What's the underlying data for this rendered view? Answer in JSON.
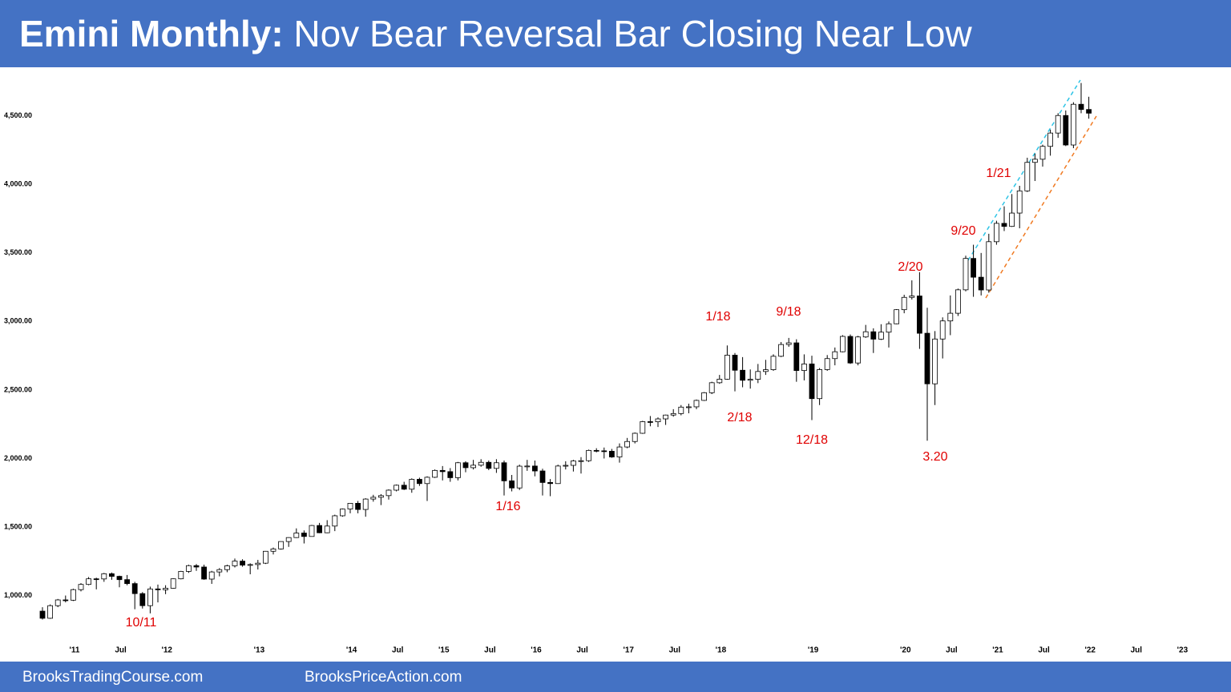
{
  "chart_data": {
    "type": "candlestick",
    "title_lead": "Emini Monthly:",
    "title": "Nov Bear Reversal Bar Closing Near Low",
    "footer": [
      "BrooksTradingCourse.com",
      "BrooksPriceAction.com"
    ],
    "x": [
      "2010-08",
      "2010-09",
      "2010-10",
      "2010-11",
      "2010-12",
      "2011-01",
      "2011-02",
      "2011-03",
      "2011-04",
      "2011-05",
      "2011-06",
      "2011-07",
      "2011-08",
      "2011-09",
      "2011-10",
      "2011-11",
      "2011-12",
      "2012-01",
      "2012-02",
      "2012-03",
      "2012-04",
      "2012-05",
      "2012-06",
      "2012-07",
      "2012-08",
      "2012-09",
      "2012-10",
      "2012-11",
      "2012-12",
      "2013-01",
      "2013-02",
      "2013-03",
      "2013-04",
      "2013-05",
      "2013-06",
      "2013-07",
      "2013-08",
      "2013-09",
      "2013-10",
      "2013-11",
      "2013-12",
      "2014-01",
      "2014-02",
      "2014-03",
      "2014-04",
      "2014-05",
      "2014-06",
      "2014-07",
      "2014-08",
      "2014-09",
      "2014-10",
      "2014-11",
      "2014-12",
      "2015-01",
      "2015-02",
      "2015-03",
      "2015-04",
      "2015-05",
      "2015-06",
      "2015-07",
      "2015-08",
      "2015-09",
      "2015-10",
      "2015-11",
      "2015-12",
      "2016-01",
      "2016-02",
      "2016-03",
      "2016-04",
      "2016-05",
      "2016-06",
      "2016-07",
      "2016-08",
      "2016-09",
      "2016-10",
      "2016-11",
      "2016-12",
      "2017-01",
      "2017-02",
      "2017-03",
      "2017-04",
      "2017-05",
      "2017-06",
      "2017-07",
      "2017-08",
      "2017-09",
      "2017-10",
      "2017-11",
      "2017-12",
      "2018-01",
      "2018-02",
      "2018-03",
      "2018-04",
      "2018-05",
      "2018-06",
      "2018-07",
      "2018-08",
      "2018-09",
      "2018-10",
      "2018-11",
      "2018-12",
      "2019-01",
      "2019-02",
      "2019-03",
      "2019-04",
      "2019-05",
      "2019-06",
      "2019-07",
      "2019-08",
      "2019-09",
      "2019-10",
      "2019-11",
      "2019-12",
      "2020-01",
      "2020-02",
      "2020-03",
      "2020-04",
      "2020-05",
      "2020-06",
      "2020-07",
      "2020-08",
      "2020-09",
      "2020-10",
      "2020-11",
      "2020-12",
      "2021-01",
      "2021-02",
      "2021-03",
      "2021-04",
      "2021-05",
      "2021-06",
      "2021-07",
      "2021-08",
      "2021-09",
      "2021-10",
      "2021-11",
      "2021-12"
    ],
    "open": [
      886,
      834,
      926,
      968,
      966,
      1043,
      1081,
      1122,
      1121,
      1159,
      1140,
      1116,
      1087,
      1014,
      926,
      1048,
      1042,
      1053,
      1122,
      1176,
      1218,
      1208,
      1120,
      1172,
      1189,
      1217,
      1251,
      1222,
      1226,
      1236,
      1323,
      1340,
      1394,
      1423,
      1456,
      1431,
      1511,
      1458,
      1507,
      1582,
      1631,
      1673,
      1628,
      1704,
      1717,
      1729,
      1769,
      1805,
      1776,
      1848,
      1817,
      1863,
      1913,
      1904,
      1860,
      1969,
      1933,
      1951,
      1972,
      1928,
      1969,
      1837,
      1785,
      1944,
      1945,
      1909,
      1825,
      1817,
      1945,
      1950,
      1982,
      1984,
      2059,
      2056,
      2053,
      2011,
      2084,
      2124,
      2184,
      2269,
      2268,
      2289,
      2317,
      2328,
      2375,
      2377,
      2424,
      2480,
      2553,
      2579,
      2754,
      2644,
      2571,
      2578,
      2635,
      2648,
      2746,
      2832,
      2844,
      2642,
      2690,
      2437,
      2649,
      2729,
      2779,
      2891,
      2697,
      2887,
      2925,
      2871,
      2922,
      2983,
      3086,
      3176,
      3186,
      2914,
      2545,
      2872,
      3004,
      3060,
      3231,
      3460,
      3323,
      3230,
      3582,
      3716,
      3694,
      3791,
      3953,
      4161,
      4184,
      4278,
      4375,
      4503,
      4288,
      4585,
      4547
    ],
    "high": [
      915,
      935,
      975,
      1000,
      1050,
      1090,
      1135,
      1130,
      1165,
      1168,
      1145,
      1150,
      1100,
      1025,
      1065,
      1080,
      1075,
      1125,
      1180,
      1225,
      1230,
      1225,
      1180,
      1200,
      1225,
      1270,
      1265,
      1235,
      1260,
      1325,
      1350,
      1395,
      1425,
      1490,
      1475,
      1515,
      1530,
      1550,
      1590,
      1635,
      1675,
      1690,
      1710,
      1735,
      1740,
      1775,
      1810,
      1830,
      1855,
      1860,
      1870,
      1920,
      1945,
      1930,
      1975,
      1980,
      1990,
      1995,
      1985,
      1995,
      1985,
      1880,
      1955,
      1990,
      1985,
      1925,
      1850,
      1955,
      1980,
      1990,
      2010,
      2065,
      2075,
      2080,
      2070,
      2110,
      2150,
      2190,
      2275,
      2310,
      2300,
      2320,
      2360,
      2390,
      2400,
      2430,
      2485,
      2560,
      2610,
      2825,
      2770,
      2740,
      2650,
      2690,
      2720,
      2760,
      2850,
      2880,
      2870,
      2760,
      2750,
      2660,
      2755,
      2810,
      2900,
      2905,
      2895,
      2975,
      2950,
      2980,
      3000,
      3090,
      3195,
      3300,
      3360,
      3100,
      2930,
      3030,
      3190,
      3240,
      3480,
      3560,
      3500,
      3640,
      3735,
      3840,
      3930,
      3990,
      4195,
      4225,
      4290,
      4400,
      4520,
      4540,
      4600,
      4740,
      4640
    ],
    "low": [
      825,
      830,
      915,
      950,
      960,
      1030,
      1075,
      1045,
      1100,
      1115,
      1060,
      1075,
      900,
      905,
      870,
      950,
      1010,
      1050,
      1118,
      1165,
      1180,
      1115,
      1085,
      1140,
      1170,
      1205,
      1210,
      1155,
      1190,
      1230,
      1300,
      1335,
      1355,
      1420,
      1380,
      1430,
      1455,
      1455,
      1470,
      1575,
      1600,
      1600,
      1575,
      1685,
      1660,
      1700,
      1760,
      1770,
      1750,
      1800,
      1690,
      1858,
      1840,
      1830,
      1840,
      1900,
      1920,
      1940,
      1915,
      1895,
      1730,
      1760,
      1770,
      1910,
      1870,
      1730,
      1725,
      1815,
      1920,
      1905,
      1890,
      1975,
      2045,
      2000,
      2005,
      1970,
      2075,
      2110,
      2180,
      2235,
      2230,
      2245,
      2305,
      2315,
      2330,
      2360,
      2420,
      2470,
      2545,
      2575,
      2490,
      2520,
      2510,
      2550,
      2610,
      2640,
      2740,
      2815,
      2560,
      2570,
      2280,
      2390,
      2640,
      2680,
      2775,
      2690,
      2680,
      2880,
      2770,
      2865,
      2810,
      2980,
      3060,
      3160,
      2800,
      2130,
      2390,
      2730,
      2900,
      3040,
      3220,
      3180,
      3190,
      3210,
      3560,
      3660,
      3690,
      3680,
      3945,
      4025,
      4130,
      4210,
      4340,
      4280,
      4265,
      4520,
      4480
    ],
    "close": [
      834,
      926,
      968,
      966,
      1043,
      1081,
      1122,
      1121,
      1159,
      1140,
      1116,
      1087,
      1014,
      926,
      1048,
      1042,
      1053,
      1122,
      1176,
      1218,
      1208,
      1120,
      1172,
      1189,
      1217,
      1251,
      1222,
      1226,
      1236,
      1323,
      1340,
      1394,
      1423,
      1456,
      1431,
      1511,
      1458,
      1507,
      1582,
      1631,
      1673,
      1628,
      1704,
      1717,
      1729,
      1769,
      1805,
      1776,
      1848,
      1817,
      1863,
      1913,
      1904,
      1860,
      1969,
      1933,
      1951,
      1972,
      1928,
      1969,
      1837,
      1785,
      1944,
      1945,
      1909,
      1825,
      1817,
      1945,
      1950,
      1982,
      1984,
      2059,
      2056,
      2053,
      2011,
      2084,
      2124,
      2184,
      2269,
      2268,
      2289,
      2317,
      2328,
      2375,
      2377,
      2424,
      2480,
      2553,
      2579,
      2754,
      2644,
      2571,
      2578,
      2635,
      2648,
      2746,
      2832,
      2844,
      2642,
      2690,
      2437,
      2649,
      2729,
      2779,
      2891,
      2697,
      2887,
      2925,
      2871,
      2922,
      2983,
      3086,
      3176,
      3186,
      2914,
      2545,
      2872,
      3004,
      3060,
      3231,
      3460,
      3323,
      3230,
      3582,
      3716,
      3694,
      3791,
      3953,
      4161,
      4184,
      4278,
      4375,
      4503,
      4288,
      4585,
      4547,
      4520
    ],
    "up_color": "#ffffff",
    "down_color": "#000000",
    "xlim": [
      "2010-07",
      "2023-03"
    ],
    "xticks": [
      {
        "value": "2011-01",
        "label": "'11"
      },
      {
        "value": "2011-07",
        "label": "Jul"
      },
      {
        "value": "2012-01",
        "label": "'12"
      },
      {
        "value": "2013-01",
        "label": "'13"
      },
      {
        "value": "2014-01",
        "label": "'14"
      },
      {
        "value": "2014-07",
        "label": "Jul"
      },
      {
        "value": "2015-01",
        "label": "'15"
      },
      {
        "value": "2015-07",
        "label": "Jul"
      },
      {
        "value": "2016-01",
        "label": "'16"
      },
      {
        "value": "2016-07",
        "label": "Jul"
      },
      {
        "value": "2017-01",
        "label": "'17"
      },
      {
        "value": "2017-07",
        "label": "Jul"
      },
      {
        "value": "2018-01",
        "label": "'18"
      },
      {
        "value": "2019-01",
        "label": "'19"
      },
      {
        "value": "2020-01",
        "label": "'20"
      },
      {
        "value": "2020-07",
        "label": "Jul"
      },
      {
        "value": "2021-01",
        "label": "'21"
      },
      {
        "value": "2021-07",
        "label": "Jul"
      },
      {
        "value": "2022-01",
        "label": "'22"
      },
      {
        "value": "2022-07",
        "label": "Jul"
      },
      {
        "value": "2023-01",
        "label": "'23"
      }
    ],
    "ylim": [
      670,
      4820
    ],
    "yticks": [
      {
        "value": 1000,
        "label": "1,000.00"
      },
      {
        "value": 1500,
        "label": "1,500.00"
      },
      {
        "value": 2000,
        "label": "2,000.00"
      },
      {
        "value": 2500,
        "label": "2,500.00"
      },
      {
        "value": 3000,
        "label": "3,000.00"
      },
      {
        "value": 3500,
        "label": "3,500.00"
      },
      {
        "value": 4000,
        "label": "4,000.00"
      },
      {
        "value": 4500,
        "label": "4,500.00"
      }
    ],
    "grid": false,
    "annotations": [
      "10/11",
      "1/16",
      "1/18",
      "2/18",
      "9/18",
      "12/18",
      "2/20",
      "3.20",
      "9/20",
      "1/21"
    ]
  }
}
